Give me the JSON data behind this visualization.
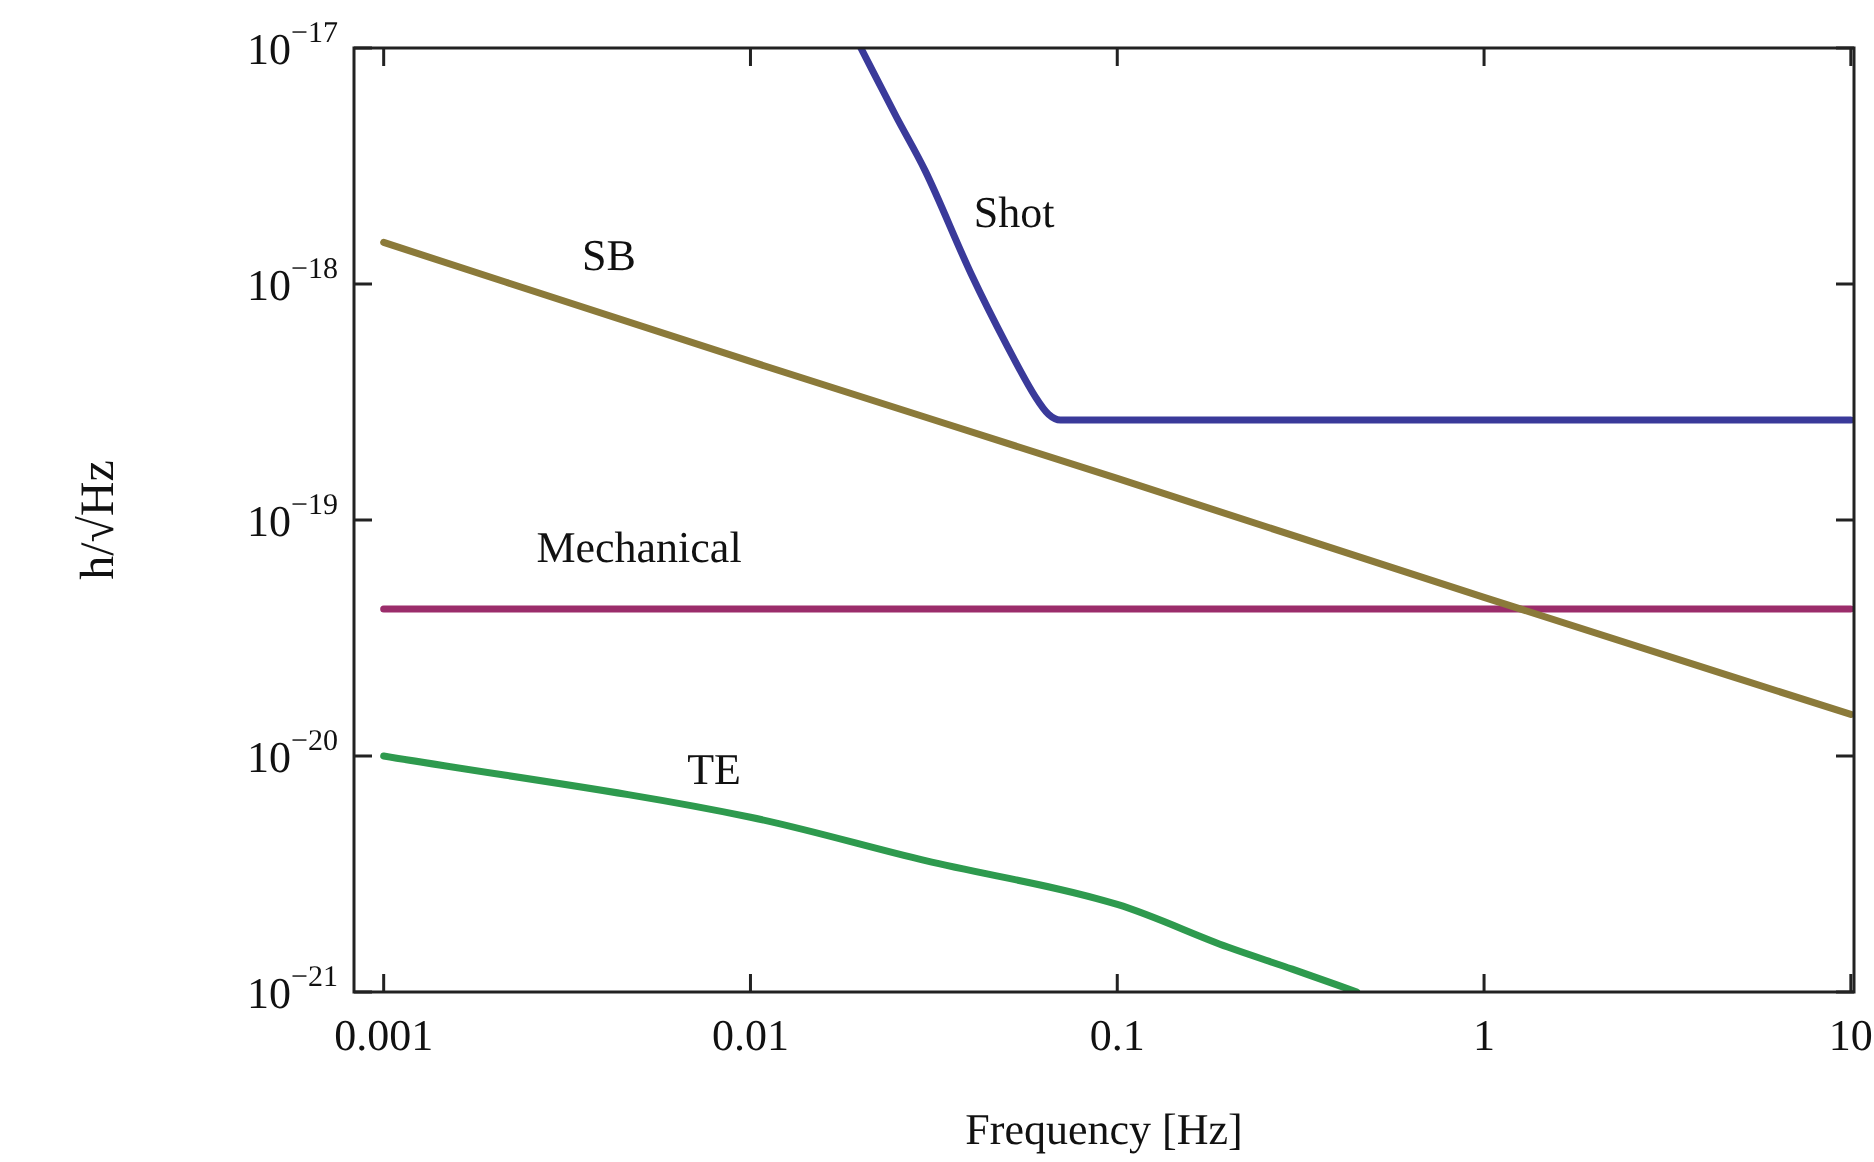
{
  "chart_data": {
    "type": "line",
    "xlabel": "Frequency [Hz]",
    "ylabel": "h/√Hz",
    "log": "xy",
    "grid": false,
    "legend": false,
    "marker": "none",
    "line_style": "solid",
    "xlim": [
      0.00083,
      10.2
    ],
    "ylim": [
      1e-21,
      1e-17
    ],
    "xticks": [
      0.001,
      0.01,
      0.1,
      1,
      10
    ],
    "yticks": [
      {
        "value": 1e-21,
        "label": "10$^{−21}$"
      },
      {
        "value": 1e-20,
        "label": "10$^{−20}$"
      },
      {
        "value": 1e-19,
        "label": "10$^{−19}$"
      },
      {
        "value": 1e-18,
        "label": "10$^{−18}$"
      },
      {
        "value": 1e-17,
        "label": "10$^{−17}$"
      }
    ],
    "series": [
      {
        "name": "Shot",
        "color": "#3a3a9a",
        "x": [
          0.02,
          0.025,
          0.03,
          0.04,
          0.05,
          0.06,
          0.065,
          0.07,
          10
        ],
        "values": [
          1e-17,
          5.1e-18,
          3e-18,
          1.1e-18,
          5.5e-19,
          3.3e-19,
          2.8e-19,
          2.65e-19,
          2.65e-19
        ]
      },
      {
        "name": "SB",
        "color": "#8b7a3a",
        "x": [
          0.001,
          0.01,
          0.1,
          1,
          10
        ],
        "values": [
          1.5e-18,
          4.7e-19,
          1.5e-19,
          4.7e-20,
          1.5e-20
        ]
      },
      {
        "name": "Mechanical",
        "color": "#9b2d6b",
        "x": [
          0.001,
          10
        ],
        "values": [
          4.2e-20,
          4.2e-20
        ]
      },
      {
        "name": "TE",
        "color": "#2e9a4e",
        "x": [
          0.001,
          0.01,
          0.03,
          0.1,
          0.2,
          0.3,
          0.45
        ],
        "values": [
          1e-20,
          5.5e-21,
          3.6e-21,
          2.35e-21,
          1.55e-21,
          1.25e-21,
          1e-21
        ]
      }
    ]
  }
}
